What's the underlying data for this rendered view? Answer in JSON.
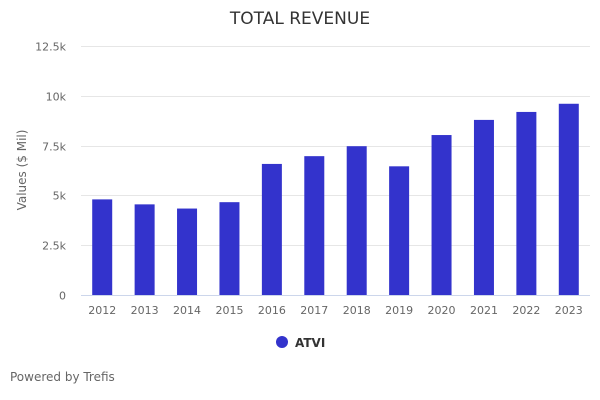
{
  "chart_data": {
    "type": "bar",
    "title": "TOTAL REVENUE",
    "xlabel": "",
    "ylabel": "Values ($ Mil)",
    "ylim": [
      0,
      12500
    ],
    "yticks": [
      0,
      2500,
      5000,
      7500,
      10000,
      12500
    ],
    "ytick_labels": [
      "0",
      "2.5k",
      "5k",
      "7.5k",
      "10k",
      "12.5k"
    ],
    "grid": true,
    "legend_position": "bottom",
    "categories": [
      "2012",
      "2013",
      "2014",
      "2015",
      "2016",
      "2017",
      "2018",
      "2019",
      "2020",
      "2021",
      "2022",
      "2023"
    ],
    "series": [
      {
        "name": "ATVI",
        "color": "#3333cc",
        "values": [
          4800,
          4550,
          4340,
          4660,
          6580,
          6970,
          7470,
          6460,
          8030,
          8790,
          9190,
          9600
        ]
      }
    ]
  },
  "footer": {
    "credit": "Powered by Trefis"
  }
}
